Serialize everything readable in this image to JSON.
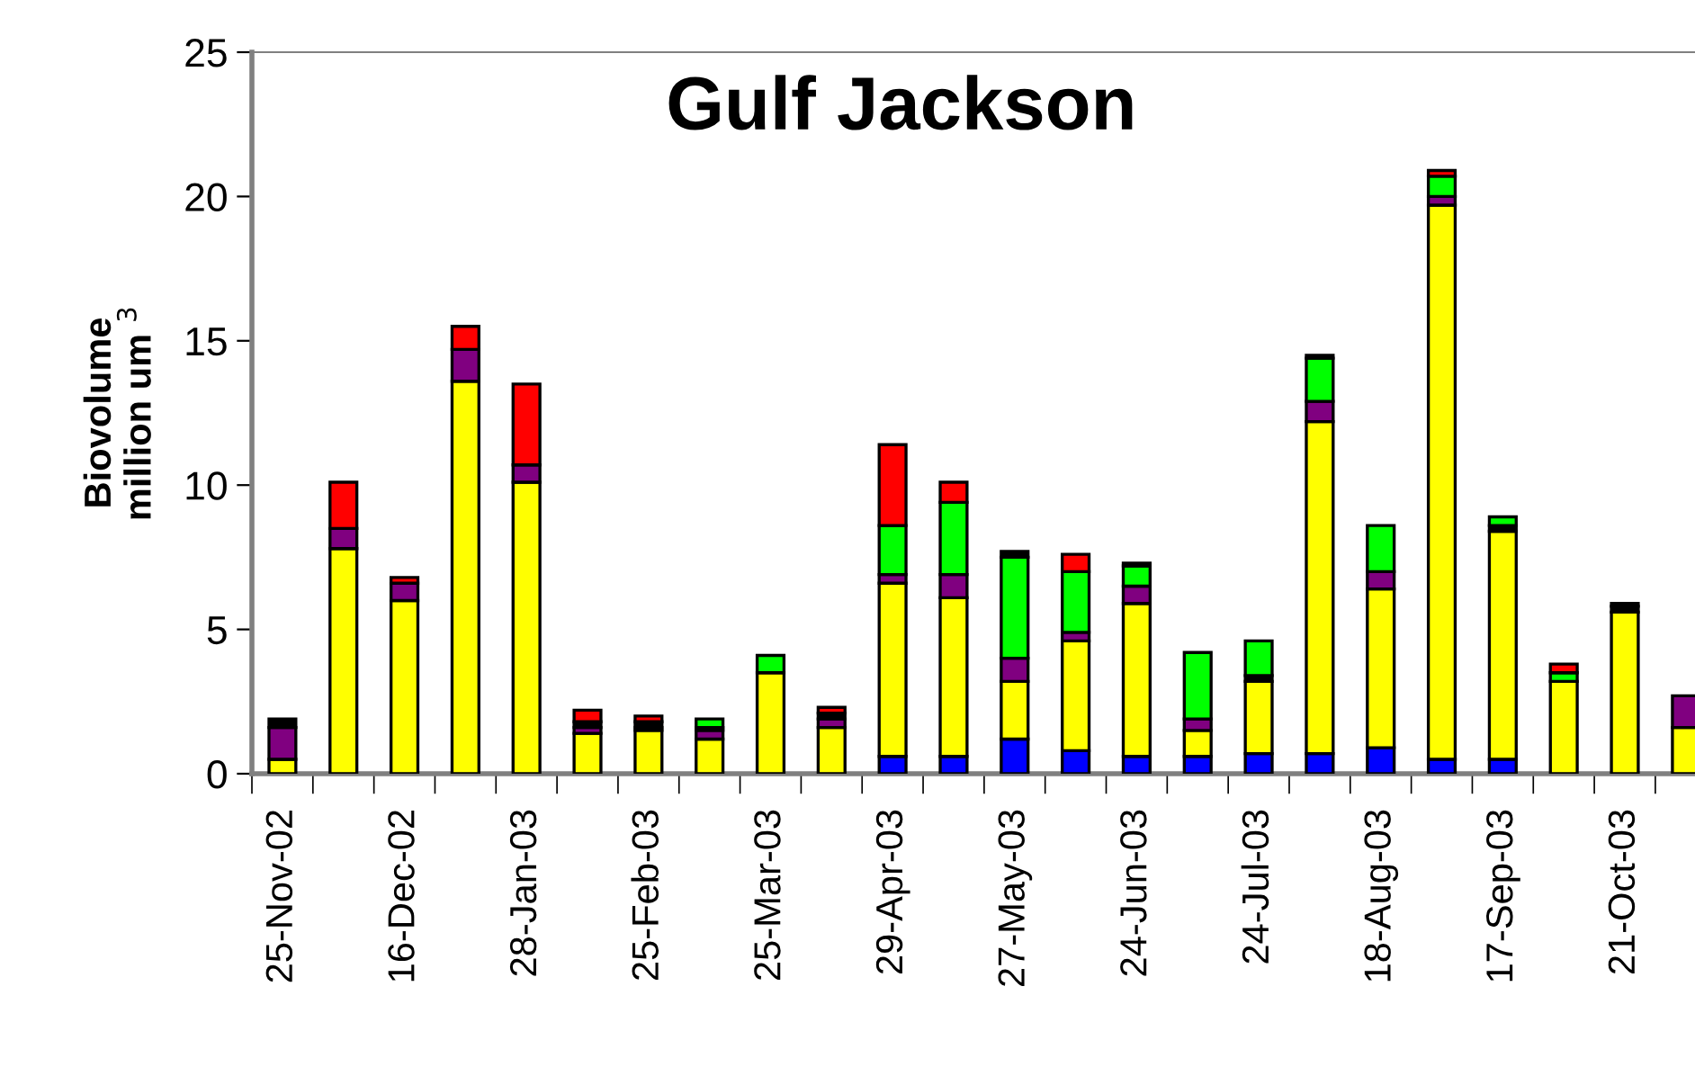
{
  "chart_data": {
    "type": "bar",
    "title": "Gulf Jackson",
    "ylabel": "Biovolume\nmillion um $^{3}$",
    "stacked": true,
    "categories": [
      "25-Nov-02",
      null,
      "16-Dec-02",
      null,
      "28-Jan-03",
      null,
      "25-Feb-03",
      null,
      "25-Mar-03",
      null,
      "29-Apr-03",
      null,
      "27-May-03",
      null,
      "24-Jun-03",
      null,
      "24-Jul-03",
      null,
      "18-Aug-03",
      null,
      "17-Sep-03",
      null,
      "21-Oct-03",
      null
    ],
    "series": [
      {
        "color": "#0000ff",
        "values": [
          null,
          null,
          null,
          null,
          null,
          null,
          null,
          null,
          null,
          null,
          0.6,
          0.6,
          1.2,
          0.8,
          0.6,
          0.6,
          0.7,
          0.7,
          0.9,
          0.5,
          0.5,
          null,
          null,
          null
        ]
      },
      {
        "color": "#ffff00",
        "values": [
          0.5,
          7.8,
          6.0,
          13.6,
          10.1,
          1.4,
          1.5,
          1.2,
          3.5,
          1.6,
          6.0,
          5.5,
          2.0,
          3.8,
          5.3,
          0.9,
          2.5,
          11.5,
          5.5,
          19.2,
          7.9,
          3.2,
          5.6,
          1.6
        ]
      },
      {
        "color": "#800080",
        "values": [
          1.1,
          0.7,
          0.6,
          1.1,
          0.6,
          0.2,
          0.1,
          0.3,
          null,
          0.3,
          0.3,
          0.8,
          0.8,
          0.3,
          0.6,
          0.4,
          null,
          0.7,
          0.6,
          0.3,
          null,
          null,
          null,
          1.1
        ]
      },
      {
        "color": "#000000",
        "values": [
          0.3,
          null,
          null,
          null,
          null,
          0.2,
          0.2,
          0.1,
          null,
          0.2,
          null,
          null,
          null,
          null,
          null,
          null,
          0.2,
          null,
          null,
          null,
          0.2,
          null,
          0.2,
          null
        ]
      },
      {
        "color": "#00ff00",
        "values": [
          null,
          null,
          null,
          null,
          null,
          null,
          null,
          0.3,
          0.6,
          null,
          1.7,
          2.5,
          3.5,
          2.1,
          0.7,
          2.3,
          1.2,
          1.5,
          1.6,
          0.7,
          0.3,
          0.3,
          0.1,
          null
        ]
      },
      {
        "color": "#000000",
        "values": [
          null,
          null,
          null,
          null,
          null,
          null,
          null,
          null,
          null,
          null,
          null,
          null,
          0.2,
          null,
          0.1,
          null,
          null,
          0.1,
          null,
          null,
          null,
          null,
          null,
          null
        ]
      },
      {
        "color": "#ff0000",
        "values": [
          null,
          1.6,
          0.2,
          0.8,
          2.8,
          0.4,
          0.2,
          null,
          null,
          0.2,
          2.8,
          0.7,
          null,
          0.6,
          null,
          null,
          null,
          null,
          null,
          0.2,
          null,
          0.3,
          null,
          null
        ]
      }
    ],
    "ylim": [
      0,
      25
    ],
    "yticks": [
      0,
      5,
      10,
      15,
      20,
      25
    ],
    "grid": false,
    "legend": false
  }
}
